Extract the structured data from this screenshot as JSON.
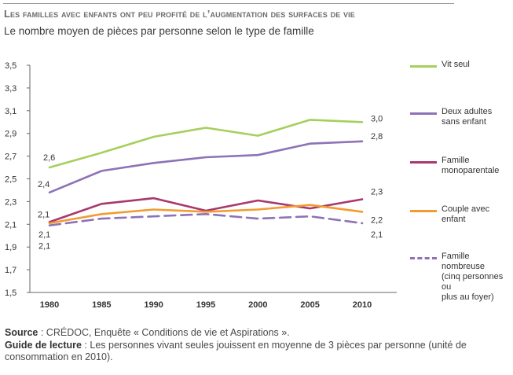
{
  "title": "Les familles avec enfants ont peu profité de l’augmentation des surfaces de vie",
  "subtitle": "Le nombre moyen de pièces par personne selon le type de famille",
  "chart_data": {
    "type": "line",
    "x": [
      "1980",
      "1985",
      "1990",
      "1995",
      "2000",
      "2005",
      "2010"
    ],
    "ylim": [
      1.5,
      3.5
    ],
    "yticks": [
      "3,5",
      "3,3",
      "3,1",
      "2,9",
      "2,7",
      "2,5",
      "2,3",
      "2,1",
      "1,9",
      "1,7",
      "1,5"
    ],
    "grid": false,
    "legend_position": "right",
    "series": [
      {
        "name": "Vit seul",
        "color": "#a6cf5d",
        "dashed": false,
        "values": [
          2.6,
          2.73,
          2.87,
          2.95,
          2.88,
          3.02,
          3.0
        ],
        "labels": {
          "first": "2,6",
          "last": "3,0"
        }
      },
      {
        "name": "Deux adultes\nsans enfant",
        "color": "#8e72b8",
        "dashed": false,
        "values": [
          2.38,
          2.57,
          2.64,
          2.69,
          2.71,
          2.81,
          2.83
        ],
        "labels": {
          "first": "2,4",
          "last": "2,8"
        }
      },
      {
        "name": "Famille\nmonoparentale",
        "color": "#a8386e",
        "dashed": false,
        "values": [
          2.12,
          2.28,
          2.33,
          2.22,
          2.31,
          2.24,
          2.32
        ],
        "labels": {
          "first": "2,1",
          "last": "2,3"
        }
      },
      {
        "name": "Couple avec\nenfant",
        "color": "#f29b30",
        "dashed": false,
        "values": [
          2.11,
          2.19,
          2.23,
          2.21,
          2.23,
          2.27,
          2.21
        ],
        "labels": {
          "first": "2,1",
          "last": "2,2"
        }
      },
      {
        "name": "Famille nombreuse\n(cinq personnes ou\nplus au foyer)",
        "color": "#8e72b8",
        "dashed": true,
        "values": [
          2.09,
          2.15,
          2.17,
          2.19,
          2.15,
          2.17,
          2.11
        ],
        "labels": {
          "first": "2,1",
          "last": "2,1"
        }
      }
    ]
  },
  "footer": {
    "source_label": "Source",
    "source_text": " : CRÉDOC, Enquête « Conditions de vie et Aspirations ».",
    "guide_label": "Guide de lecture",
    "guide_text": " : Les personnes vivant seules jouissent en moyenne de 3 pièces par personne (unité de consommation en 2010)."
  }
}
